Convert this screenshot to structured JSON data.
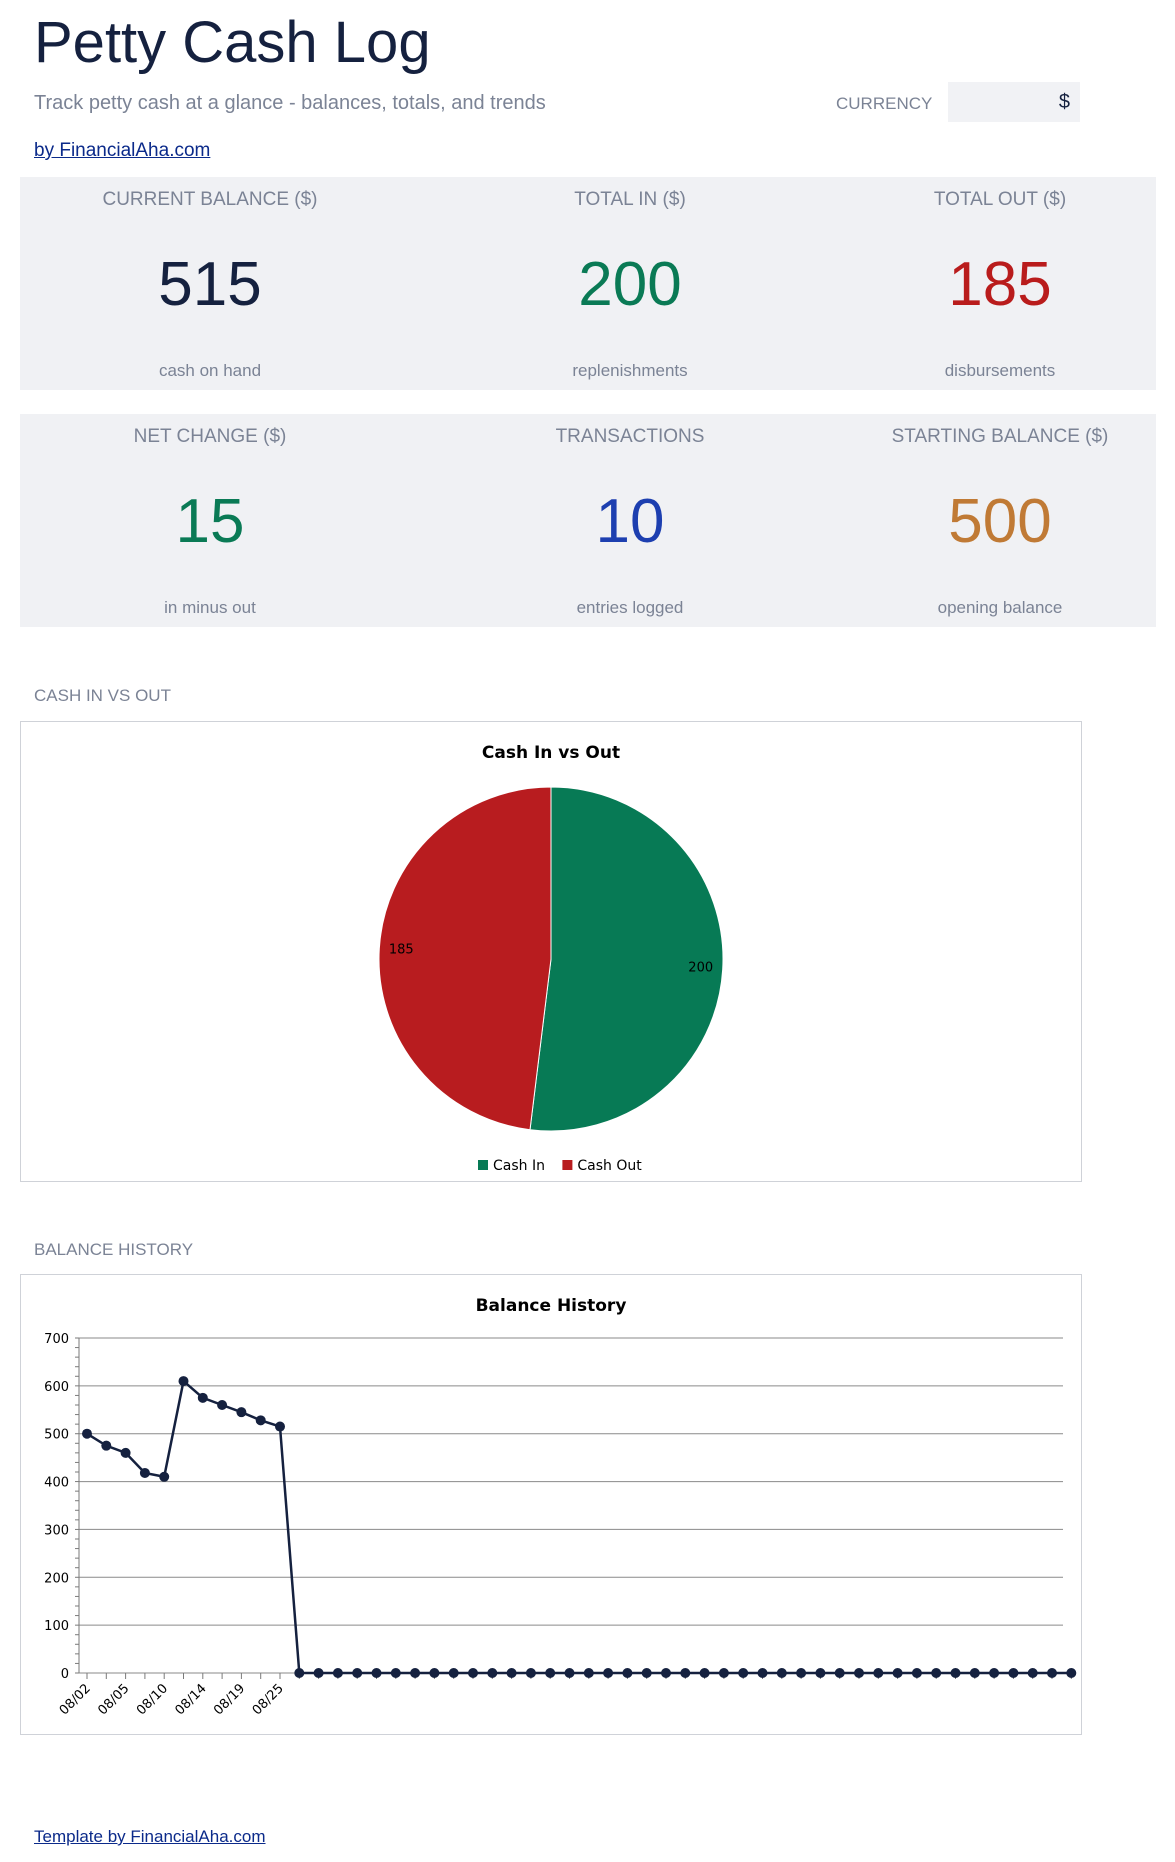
{
  "header": {
    "title": "Petty Cash Log",
    "subtitle": "Track petty cash at a glance - balances, totals, and trends",
    "currency_label": "CURRENCY",
    "currency_value": "$",
    "byline": "by FinancialAha.com"
  },
  "kpis": [
    {
      "label": "CURRENT BALANCE ($)",
      "value": "515",
      "sub": "cash on hand",
      "color": "#15213f"
    },
    {
      "label": "TOTAL IN ($)",
      "value": "200",
      "sub": "replenishments",
      "color": "#0a7a55"
    },
    {
      "label": "TOTAL OUT ($)",
      "value": "185",
      "sub": "disbursements",
      "color": "#b91c1c"
    },
    {
      "label": "NET CHANGE ($)",
      "value": "15",
      "sub": "in minus out",
      "color": "#0a7a55"
    },
    {
      "label": "TRANSACTIONS",
      "value": "10",
      "sub": "entries logged",
      "color": "#1d3fb0"
    },
    {
      "label": "STARTING BALANCE ($)",
      "value": "500",
      "sub": "opening balance",
      "color": "#c07a35"
    }
  ],
  "sections": {
    "pie_label": "CASH IN VS OUT",
    "line_label": "BALANCE HISTORY"
  },
  "chart_data": [
    {
      "type": "pie",
      "title": "Cash In vs Out",
      "categories": [
        "Cash In",
        "Cash Out"
      ],
      "values": [
        200,
        185
      ],
      "data_labels": [
        "200",
        "185"
      ],
      "colors": [
        "#077a55",
        "#b81c1f"
      ],
      "legend": "bottom"
    },
    {
      "type": "line",
      "title": "Balance History",
      "x_tick_labels": [
        "08/02",
        "08/05",
        "08/10",
        "08/14",
        "08/19",
        "08/25"
      ],
      "values": [
        500,
        475,
        460,
        418,
        410,
        610,
        575,
        560,
        545,
        528,
        515,
        0,
        0,
        0,
        0,
        0,
        0,
        0,
        0,
        0,
        0,
        0,
        0,
        0,
        0,
        0,
        0,
        0,
        0,
        0,
        0,
        0,
        0,
        0,
        0,
        0,
        0,
        0,
        0,
        0,
        0,
        0,
        0,
        0,
        0,
        0,
        0,
        0,
        0,
        0,
        0,
        0
      ],
      "ylim": [
        0,
        700
      ],
      "y_ticks": [
        0,
        100,
        200,
        300,
        400,
        500,
        600,
        700
      ],
      "line_color": "#15213f",
      "grid": true,
      "legend": "none"
    }
  ],
  "footer": {
    "link": "Template by FinancialAha.com"
  }
}
